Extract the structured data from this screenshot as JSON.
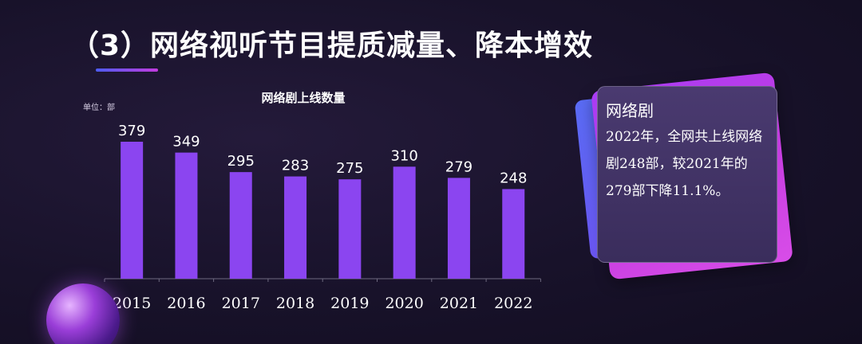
{
  "page": {
    "title": "（3）网络视听节目提质减量、降本增效"
  },
  "card": {
    "heading": "网络剧",
    "text": "2022年，全网共上线网络剧248部，较2021年的279部下降11.1%。"
  },
  "colors": {
    "bar": "#8b45f0",
    "accent_start": "#4d5cf0",
    "accent_end": "#c43be0"
  },
  "chart_data": {
    "type": "bar",
    "title": "网络剧上线数量",
    "unit_label": "单位：部",
    "categories": [
      "2015",
      "2016",
      "2017",
      "2018",
      "2019",
      "2020",
      "2021",
      "2022"
    ],
    "values": [
      379,
      349,
      295,
      283,
      275,
      310,
      279,
      248
    ],
    "xlabel": "",
    "ylabel": "",
    "ylim": [
      0,
      379
    ],
    "grid": false,
    "legend": "none"
  }
}
